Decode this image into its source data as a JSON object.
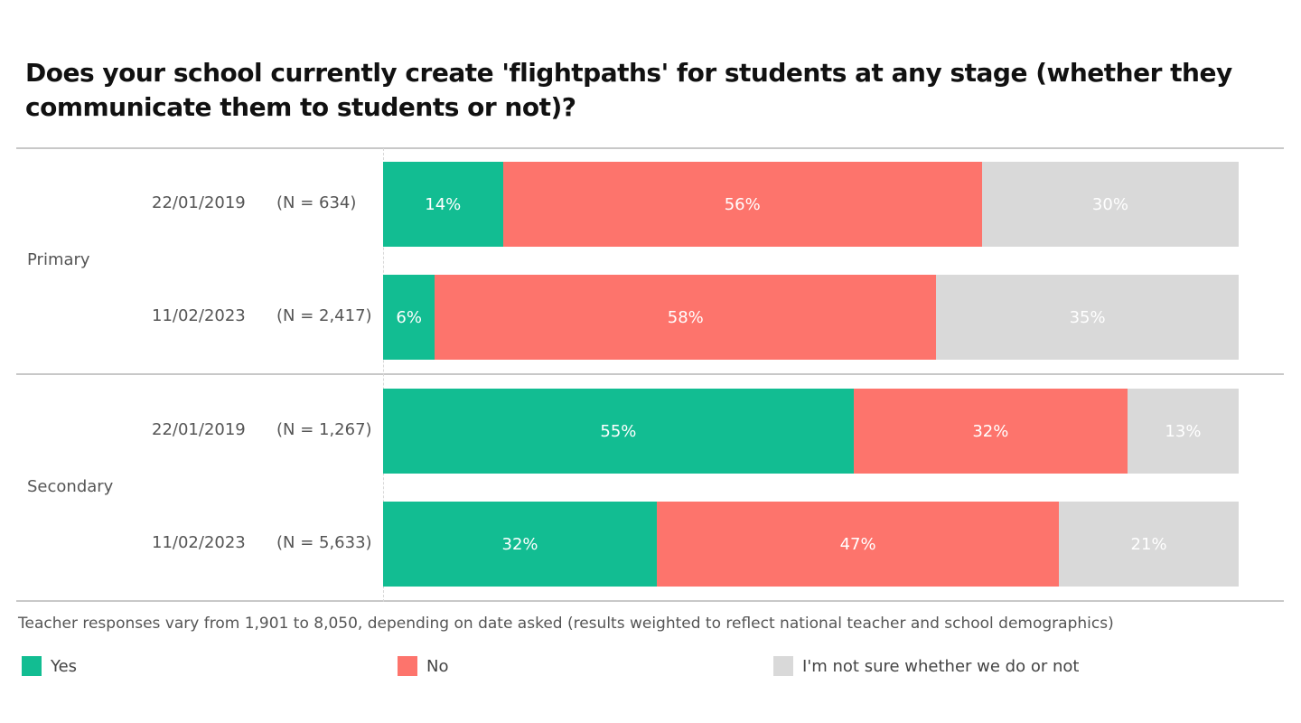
{
  "chart_data": {
    "type": "bar",
    "orientation": "horizontal",
    "stacked": true,
    "title": "Does your school currently create 'flightpaths' for students at any stage (whether they communicate them to students or not)?",
    "groups": [
      {
        "label": "Primary",
        "rows": [
          {
            "date": "22/01/2019",
            "n": "(N = 634)",
            "values": [
              14,
              56,
              30
            ]
          },
          {
            "date": "11/02/2023",
            "n": "(N = 2,417)",
            "values": [
              6,
              58,
              35
            ]
          }
        ]
      },
      {
        "label": "Secondary",
        "rows": [
          {
            "date": "22/01/2019",
            "n": "(N = 1,267)",
            "values": [
              55,
              32,
              13
            ]
          },
          {
            "date": "11/02/2023",
            "n": "(N = 5,633)",
            "values": [
              32,
              47,
              21
            ]
          }
        ]
      }
    ],
    "series": [
      {
        "name": "Yes",
        "color": "#12bd92"
      },
      {
        "name": "No",
        "color": "#fd746c"
      },
      {
        "name": "I'm not sure whether we do or not",
        "color": "#d9d9d9"
      }
    ],
    "note": "Teacher responses vary from 1,901 to 8,050, depending on date asked (results weighted to reflect national teacher and school demographics)",
    "legend_position": "bottom",
    "value_suffix": "%"
  }
}
